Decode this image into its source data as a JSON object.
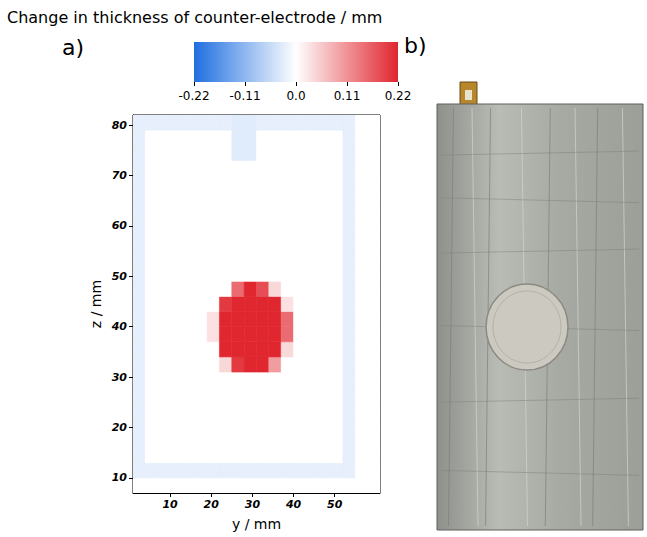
{
  "chart_data": {
    "type": "heatmap",
    "panel_label": "a)",
    "xlabel": "y / mm",
    "ylabel": "z / mm",
    "xlim": [
      1,
      61
    ],
    "xticks": [
      10,
      20,
      30,
      40,
      50
    ],
    "ylim": [
      7,
      82
    ],
    "yticks": [
      10,
      20,
      30,
      40,
      50,
      60,
      70,
      80
    ],
    "x": [
      2.5,
      5.5,
      8.5,
      11.5,
      14.5,
      17.5,
      20.5,
      23.5,
      26.5,
      29.5,
      32.5,
      35.5,
      38.5,
      41.5,
      44.5,
      47.5,
      50.5,
      53.5,
      56.5,
      59.5
    ],
    "y": [
      8.5,
      11.5,
      14.5,
      17.5,
      20.5,
      23.5,
      26.5,
      29.5,
      32.5,
      35.5,
      38.5,
      41.5,
      44.5,
      47.5,
      50.5,
      53.5,
      56.5,
      59.5,
      62.5,
      65.5,
      68.5,
      71.5,
      74.5,
      77.5,
      80.5
    ],
    "cells": [
      [
        0,
        0,
        0,
        0,
        0,
        0,
        0,
        0,
        0,
        0,
        0,
        0,
        0,
        0,
        0,
        0,
        0,
        0,
        0,
        0
      ],
      [
        -0.025,
        -0.025,
        -0.025,
        -0.025,
        -0.025,
        -0.025,
        -0.025,
        -0.025,
        -0.025,
        -0.025,
        -0.025,
        -0.025,
        -0.025,
        -0.025,
        -0.025,
        -0.025,
        -0.025,
        -0.025,
        0,
        0
      ],
      [
        -0.025,
        0,
        0,
        0,
        0,
        0,
        0,
        0,
        0,
        0,
        0,
        0,
        0,
        0,
        0,
        0,
        0,
        -0.025,
        0,
        0
      ],
      [
        -0.025,
        0,
        0,
        0,
        0,
        0,
        0,
        0,
        0,
        0,
        0,
        0,
        0,
        0,
        0,
        0,
        0,
        -0.025,
        0,
        0
      ],
      [
        -0.025,
        0,
        0,
        0,
        0,
        0,
        0,
        0,
        0,
        0,
        0,
        0,
        0,
        0,
        0,
        0,
        0,
        -0.025,
        0,
        0
      ],
      [
        -0.025,
        0,
        0,
        0,
        0,
        0,
        0,
        0,
        0,
        0,
        0,
        0,
        0,
        0,
        0,
        0,
        0,
        -0.025,
        0,
        0
      ],
      [
        -0.025,
        0,
        0,
        0,
        0,
        0,
        0,
        0,
        0,
        0,
        0,
        0,
        0,
        0,
        0,
        0,
        0,
        -0.025,
        0,
        0
      ],
      [
        -0.025,
        0,
        0,
        0,
        0,
        0,
        0,
        0,
        0,
        0,
        0,
        0,
        0,
        0,
        0,
        0,
        0,
        -0.025,
        0,
        0
      ],
      [
        -0.025,
        0,
        0,
        0,
        0,
        0,
        0,
        0.04,
        0.2,
        0.22,
        0.22,
        0.1,
        0,
        0,
        0,
        0,
        0,
        -0.025,
        0,
        0
      ],
      [
        -0.025,
        0,
        0,
        0,
        0,
        0,
        0,
        0.22,
        0.22,
        0.22,
        0.22,
        0.22,
        0.04,
        0,
        0,
        0,
        0,
        -0.025,
        0,
        0
      ],
      [
        -0.025,
        0,
        0,
        0,
        0,
        0,
        0.03,
        0.22,
        0.22,
        0.22,
        0.22,
        0.22,
        0.15,
        0,
        0,
        0,
        0,
        -0.025,
        0,
        0
      ],
      [
        -0.025,
        0,
        0,
        0,
        0,
        0,
        0.03,
        0.22,
        0.22,
        0.22,
        0.22,
        0.22,
        0.15,
        0,
        0,
        0,
        0,
        -0.025,
        0,
        0
      ],
      [
        -0.025,
        0,
        0,
        0,
        0,
        0,
        0,
        0.2,
        0.22,
        0.22,
        0.22,
        0.22,
        0.03,
        0,
        0,
        0,
        0,
        -0.025,
        0,
        0
      ],
      [
        -0.025,
        0,
        0,
        0,
        0,
        0,
        0,
        0,
        0.15,
        0.22,
        0.18,
        0.04,
        0,
        0,
        0,
        0,
        0,
        -0.025,
        0,
        0
      ],
      [
        -0.025,
        0,
        0,
        0,
        0,
        0,
        0,
        0,
        0,
        0,
        0,
        0,
        0,
        0,
        0,
        0,
        0,
        -0.025,
        0,
        0
      ],
      [
        -0.025,
        0,
        0,
        0,
        0,
        0,
        0,
        0,
        0,
        0,
        0,
        0,
        0,
        0,
        0,
        0,
        0,
        -0.025,
        0,
        0
      ],
      [
        -0.025,
        0,
        0,
        0,
        0,
        0,
        0,
        0,
        0,
        0,
        0,
        0,
        0,
        0,
        0,
        0,
        0,
        -0.025,
        0,
        0
      ],
      [
        -0.025,
        0,
        0,
        0,
        0,
        0,
        0,
        0,
        0,
        0,
        0,
        0,
        0,
        0,
        0,
        0,
        0,
        -0.025,
        0,
        0
      ],
      [
        -0.025,
        0,
        0,
        0,
        0,
        0,
        0,
        0,
        0,
        0,
        0,
        0,
        0,
        0,
        0,
        0,
        0,
        -0.025,
        0,
        0
      ],
      [
        -0.025,
        0,
        0,
        0,
        0,
        0,
        0,
        0,
        0,
        0,
        0,
        0,
        0,
        0,
        0,
        0,
        0,
        -0.025,
        0,
        0
      ],
      [
        -0.025,
        0,
        0,
        0,
        0,
        0,
        0,
        0,
        0,
        0,
        0,
        0,
        0,
        0,
        0,
        0,
        0,
        -0.025,
        0,
        0
      ],
      [
        -0.025,
        0,
        0,
        0,
        0,
        0,
        0,
        0,
        0,
        0,
        0,
        0,
        0,
        0,
        0,
        0,
        0,
        -0.025,
        0,
        0
      ],
      [
        -0.025,
        0,
        0,
        0,
        0,
        0,
        0,
        0,
        -0.03,
        -0.03,
        0,
        0,
        0,
        0,
        0,
        0,
        0,
        -0.025,
        0,
        0
      ],
      [
        -0.025,
        0,
        0,
        0,
        0,
        0,
        0,
        0,
        -0.03,
        -0.03,
        0,
        0,
        0,
        0,
        0,
        0,
        0,
        -0.025,
        0,
        0
      ],
      [
        -0.025,
        -0.025,
        -0.025,
        -0.025,
        -0.025,
        -0.025,
        -0.025,
        -0.025,
        -0.03,
        -0.03,
        -0.025,
        -0.025,
        -0.025,
        -0.025,
        -0.025,
        -0.025,
        -0.025,
        -0.025,
        0,
        0
      ]
    ],
    "colorbar": {
      "title": "Change in thickness of counter-electrode / mm",
      "range": [
        -0.22,
        0.22
      ],
      "ticks": [
        -0.22,
        -0.11,
        {
          "value": 0,
          "label": "0.0"
        },
        0.11,
        0.22
      ],
      "colors": [
        "#1f6fe0",
        "#ffffff",
        "#e0262e"
      ]
    }
  },
  "photo": {
    "panel_label": "b)"
  }
}
